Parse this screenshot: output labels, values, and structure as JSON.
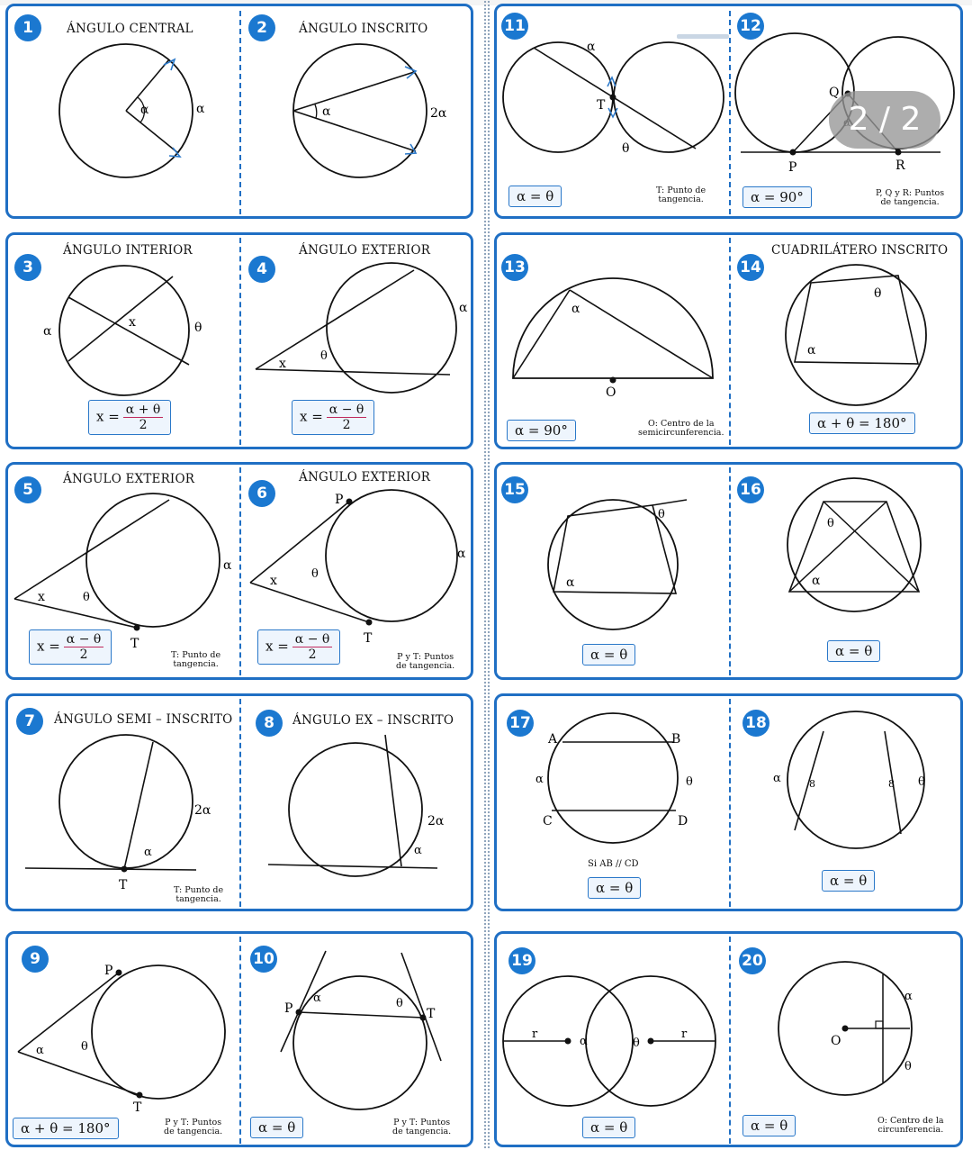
{
  "overlay": {
    "page_indicator": "2 / 2"
  },
  "colors": {
    "accent": "#1f6fc4",
    "badge": "#1b78d0",
    "fraction_bar": "#c0285c"
  },
  "cells": {
    "c1": {
      "n": "1",
      "title": "ÁNGULO CENTRAL"
    },
    "c2": {
      "n": "2",
      "title": "ÁNGULO INSCRITO"
    },
    "c11": {
      "n": "11",
      "formula": "α = θ",
      "note": "T: Punto de\ntangencia."
    },
    "c12": {
      "n": "12",
      "formula": "α = 90°",
      "note": "P, Q y R: Puntos\nde tangencia."
    },
    "c3": {
      "n": "3",
      "title": "ÁNGULO INTERIOR",
      "lhs": "x =",
      "num": "α + θ",
      "den": "2"
    },
    "c4": {
      "n": "4",
      "title": "ÁNGULO EXTERIOR",
      "lhs": "x =",
      "num": "α − θ",
      "den": "2"
    },
    "c13": {
      "n": "13",
      "formula": "α = 90°",
      "note": "O: Centro de la\nsemicircunferencia."
    },
    "c14": {
      "n": "14",
      "title": "CUADRILÁTERO INSCRITO",
      "formula": "α + θ = 180°"
    },
    "c5": {
      "n": "5",
      "title": "ÁNGULO EXTERIOR",
      "lhs": "x =",
      "num": "α − θ",
      "den": "2",
      "note": "T: Punto de\ntangencia."
    },
    "c6": {
      "n": "6",
      "title": "ÁNGULO EXTERIOR",
      "lhs": "x =",
      "num": "α − θ",
      "den": "2",
      "note": "P y T: Puntos\nde tangencia."
    },
    "c15": {
      "n": "15",
      "formula": "α = θ"
    },
    "c16": {
      "n": "16",
      "formula": "α = θ"
    },
    "c7": {
      "n": "7",
      "title": "ÁNGULO SEMI – INSCRITO",
      "note": "T: Punto de\ntangencia."
    },
    "c8": {
      "n": "8",
      "title": "ÁNGULO EX – INSCRITO"
    },
    "c17": {
      "n": "17",
      "formula": "α = θ",
      "cond": "Si AB // CD"
    },
    "c18": {
      "n": "18",
      "formula": "α = θ"
    },
    "c9": {
      "n": "9",
      "formula": "α + θ = 180°",
      "note": "P y T: Puntos\nde tangencia."
    },
    "c10": {
      "n": "10",
      "formula": "α = θ",
      "note": "P y T: Puntos\nde tangencia."
    },
    "c19": {
      "n": "19",
      "formula": "α = θ"
    },
    "c20": {
      "n": "20",
      "formula": "α = θ",
      "note": "O: Centro de la\ncircunferencia."
    }
  }
}
